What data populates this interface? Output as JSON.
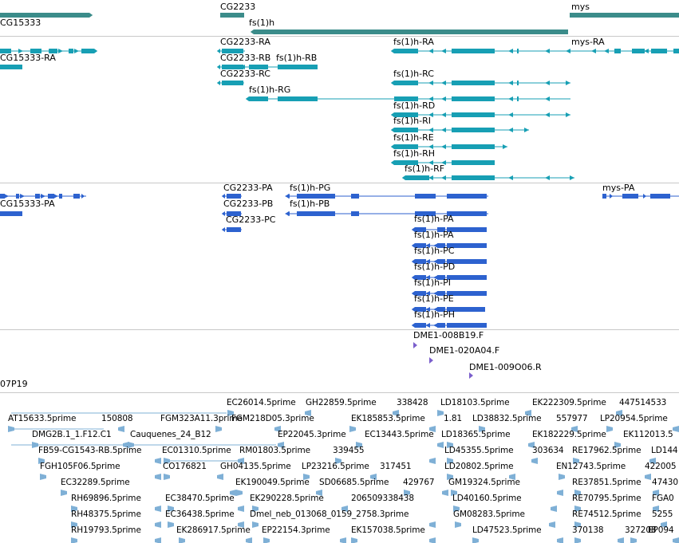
{
  "colors": {
    "gene": "#3b8c8a",
    "transcript": "#179fb4",
    "protein": "#2d62cf",
    "bac": "#7b5fcc",
    "est": "#7fb0d6",
    "separator": "#c8c8c8"
  },
  "genes": {
    "labels": [
      "CG2233",
      "CG15333",
      "fs(1)h",
      "mys"
    ]
  },
  "transcripts": {
    "labels": [
      "CG2233-RA",
      "fs(1)h-RA",
      "mys-RA",
      "CG15333-RA",
      "CG2233-RB",
      "fs(1)h-RB",
      "CG2233-RC",
      "fs(1)h-RC",
      "fs(1)h-RG",
      "fs(1)h-RD",
      "fs(1)h-RI",
      "fs(1)h-RE",
      "fs(1)h-RH",
      "fs(1)h-RF"
    ]
  },
  "proteins": {
    "labels": [
      "CG2233-PA",
      "fs(1)h-PG",
      "mys-PA",
      "CG15333-PA",
      "CG2233-PB",
      "fs(1)h-PB",
      "CG2233-PC",
      "fs(1)h-PA",
      "fs(1)h-PC",
      "fs(1)h-PD",
      "fs(1)h-PI",
      "fs(1)h-PE",
      "fs(1)h-PH",
      "fs(1)h-PF"
    ]
  },
  "bacs": {
    "labels": [
      "DME1-008B19.F",
      "DME1-020A04.F",
      "DME1-009O06.R",
      "07P19"
    ]
  },
  "ests": {
    "labels": [
      "EC26014.5prime",
      "GH22859.5prime",
      "338428",
      "LD18103.5prime",
      "EK222309.5prime",
      "447514533",
      "AT15633.5prime",
      "150808",
      "FGM323A11.3prime",
      "FGM218D05.3prime",
      "EK185853.5prime",
      "1.81",
      "LD38832.5prime",
      "557977",
      "LP20954.5prime",
      "DMG2B.1_1.F12.C1",
      "Cauquenes_24_B12",
      "EP22045.3prime",
      "EC13443.5prime",
      "LD18365.5prime",
      "EK182229.5prime",
      "EK112013.5",
      "FB59-CG1543-RB.5prime",
      "EC01310.5prime",
      "RM01803.5prime",
      "339455",
      "LD45355.5prime",
      "303634",
      "RE17962.5prime",
      "LD144",
      "FGH105F06.5prime",
      "CO176821",
      "GH04135.5prime",
      "LP23216.5prime",
      "317451",
      "LD20802.5prime",
      "EN12743.5prime",
      "422005",
      "EC32289.5prime",
      "EK190049.5prime",
      "SD06685.5prime",
      "429767",
      "GM19324.5prime",
      "RE37851.5prime",
      "47430",
      "RH69896.5prime",
      "EC38470.5prime",
      "EK290228.5prime",
      "206509338438",
      "LD40160.5prime",
      "RE70795.5prime",
      "FGA0",
      "RH48375.5prime",
      "EC36438.5prime",
      "Dmel_neb_013068_0159_2758.3prime",
      "GM08283.5prime",
      "RE74512.5prime",
      "5255",
      "RH19793.5prime",
      "EK286917.5prime",
      "EP22154.3prime",
      "EK157038.5prime",
      "LD47523.5prime",
      "370138",
      "327208",
      "EP094"
    ]
  }
}
